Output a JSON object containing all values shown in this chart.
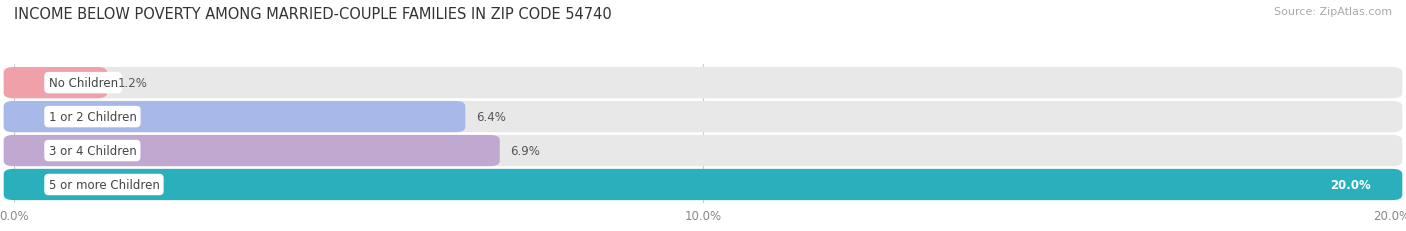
{
  "title": "INCOME BELOW POVERTY AMONG MARRIED-COUPLE FAMILIES IN ZIP CODE 54740",
  "source": "Source: ZipAtlas.com",
  "categories": [
    "No Children",
    "1 or 2 Children",
    "3 or 4 Children",
    "5 or more Children"
  ],
  "values": [
    1.2,
    6.4,
    6.9,
    20.0
  ],
  "bar_colors": [
    "#f0a0a8",
    "#a8b8e8",
    "#c0a8d0",
    "#2ab0bc"
  ],
  "xlim": [
    0,
    20.0
  ],
  "xtick_values": [
    0.0,
    10.0,
    20.0
  ],
  "xtick_labels": [
    "0.0%",
    "10.0%",
    "20.0%"
  ],
  "title_fontsize": 10.5,
  "bar_label_fontsize": 8.5,
  "category_fontsize": 8.5,
  "source_fontsize": 8,
  "background_color": "#ffffff",
  "bar_background_color": "#e8e8e8"
}
